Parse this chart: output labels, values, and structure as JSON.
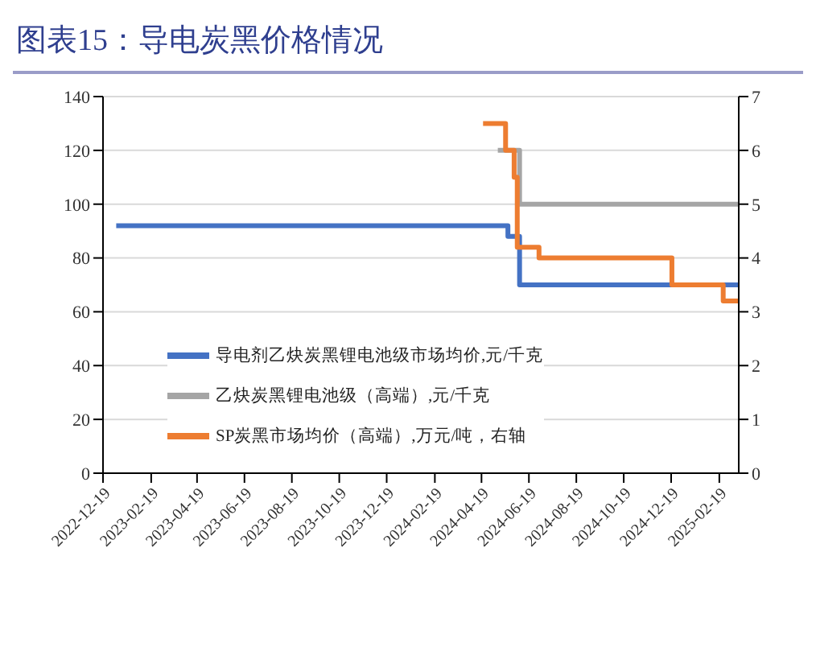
{
  "chart_data": {
    "type": "step",
    "title": "图表15：导电炭黑价格情况",
    "xlim": [
      "2022-12-19",
      "2025-03-16"
    ],
    "xticks": [
      "2022-12-19",
      "2023-02-19",
      "2023-04-19",
      "2023-06-19",
      "2023-08-19",
      "2023-10-19",
      "2023-12-19",
      "2024-02-19",
      "2024-04-19",
      "2024-06-19",
      "2024-08-19",
      "2024-10-19",
      "2024-12-19",
      "2025-02-19"
    ],
    "ylim": [
      0,
      140
    ],
    "yticks": [
      0,
      20,
      40,
      60,
      80,
      100,
      120,
      140
    ],
    "y2lim": [
      0,
      7
    ],
    "y2ticks": [
      0,
      1,
      2,
      3,
      4,
      5,
      6,
      7
    ],
    "grid": "y",
    "legend": "left",
    "series": [
      {
        "name": "导电剂乙炔炭黑锂电池级市场均价,元/千克",
        "color": "#4472c4",
        "x": [
          "2023-01-05",
          "2024-05-23",
          "2024-06-07",
          "2025-03-16"
        ],
        "values": [
          92,
          88,
          70,
          70
        ]
      },
      {
        "name": "乙炔炭黑锂电池级（高端）,元/千克",
        "color": "#a5a5a5",
        "x": [
          "2024-05-10",
          "2024-06-07",
          "2025-03-16"
        ],
        "values": [
          120,
          100,
          100
        ]
      },
      {
        "name": "SP炭黑市场均价（高端）,万元/吨，右轴",
        "color": "#ed7d31",
        "axis": "y2",
        "x": [
          "2024-04-21",
          "2024-05-20",
          "2024-05-31",
          "2024-06-04",
          "2024-07-02",
          "2024-12-20",
          "2025-02-24",
          "2025-03-16"
        ],
        "values": [
          6.5,
          6.0,
          5.5,
          4.2,
          4.0,
          3.5,
          3.2,
          3.2
        ]
      }
    ]
  }
}
